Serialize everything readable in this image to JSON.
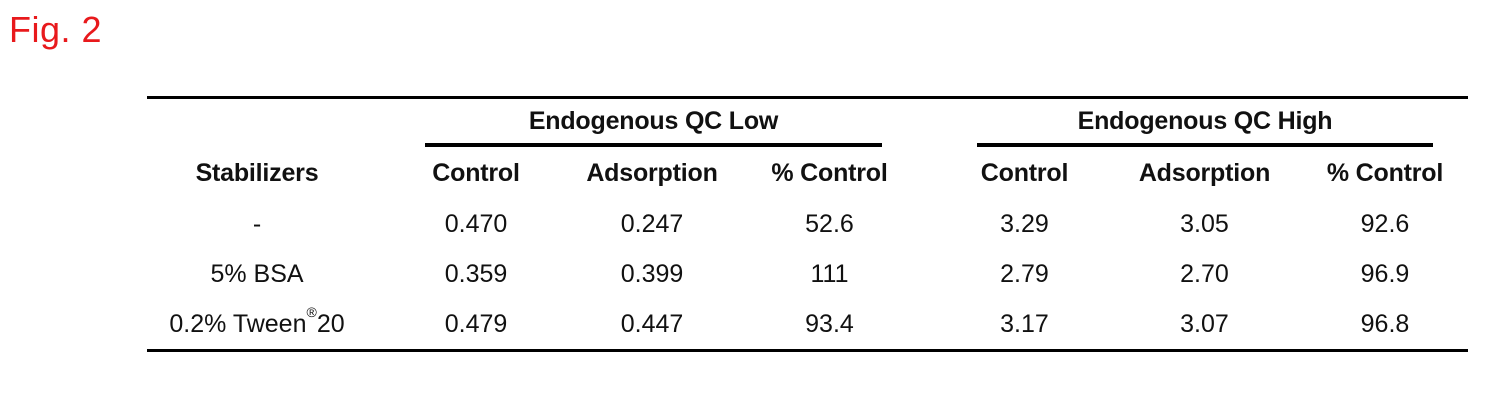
{
  "figure": {
    "label": "Fig. 2",
    "label_color": "#e8191c"
  },
  "table": {
    "row_header": "Stabilizers",
    "groups": [
      {
        "label": "Endogenous QC Low",
        "columns": [
          "Control",
          "Adsorption",
          "% Control"
        ]
      },
      {
        "label": "Endogenous QC High",
        "columns": [
          "Control",
          "Adsorption",
          "% Control"
        ]
      }
    ],
    "rows": [
      {
        "stabilizer": "-",
        "low": [
          "0.470",
          "0.247",
          "52.6"
        ],
        "high": [
          "3.29",
          "3.05",
          "92.6"
        ]
      },
      {
        "stabilizer": "5% BSA",
        "low": [
          "0.359",
          "0.399",
          "111"
        ],
        "high": [
          "2.79",
          "2.70",
          "96.9"
        ]
      },
      {
        "stabilizer_pre": "0.2% Tween",
        "stabilizer_reg": "®",
        "stabilizer_post": "20",
        "low": [
          "0.479",
          "0.447",
          "93.4"
        ],
        "high": [
          "3.17",
          "3.07",
          "96.8"
        ]
      }
    ]
  },
  "chart_data": {
    "type": "table",
    "title": "Fig. 2",
    "column_groups": [
      "Endogenous QC Low",
      "Endogenous QC High"
    ],
    "columns": [
      "Stabilizers",
      "Control",
      "Adsorption",
      "% Control",
      "Control",
      "Adsorption",
      "% Control"
    ],
    "rows": [
      [
        "-",
        0.47,
        0.247,
        52.6,
        3.29,
        3.05,
        92.6
      ],
      [
        "5% BSA",
        0.359,
        0.399,
        111,
        2.79,
        2.7,
        96.9
      ],
      [
        "0.2% Tween®20",
        0.479,
        0.447,
        93.4,
        3.17,
        3.07,
        96.8
      ]
    ]
  }
}
